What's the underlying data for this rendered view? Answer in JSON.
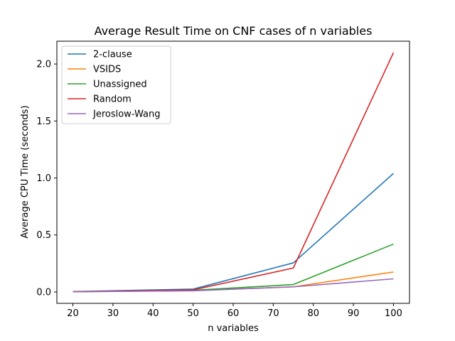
{
  "chart_data": {
    "type": "line",
    "title": "Average Result Time on CNF cases of n variables",
    "xlabel": "n variables",
    "ylabel": "Average CPU Time (seconds)",
    "x": [
      20,
      50,
      75,
      100
    ],
    "xlim": [
      16,
      104
    ],
    "ylim": [
      -0.1,
      2.2
    ],
    "xticks": [
      20,
      30,
      40,
      50,
      60,
      70,
      80,
      90,
      100
    ],
    "yticks": [
      0.0,
      0.5,
      1.0,
      1.5,
      2.0
    ],
    "xtick_labels": [
      "20",
      "30",
      "40",
      "50",
      "60",
      "70",
      "80",
      "90",
      "100"
    ],
    "ytick_labels": [
      "0.0",
      "0.5",
      "1.0",
      "1.5",
      "2.0"
    ],
    "grid": false,
    "legend_position": "top-left",
    "series": [
      {
        "name": "2-clause",
        "color": "#1f77b4",
        "values": [
          0.003,
          0.025,
          0.255,
          1.04
        ]
      },
      {
        "name": "VSIDS",
        "color": "#ff7f0e",
        "values": [
          0.002,
          0.012,
          0.045,
          0.175
        ]
      },
      {
        "name": "Unassigned",
        "color": "#2ca02c",
        "values": [
          0.003,
          0.015,
          0.065,
          0.42
        ]
      },
      {
        "name": "Random",
        "color": "#d62728",
        "values": [
          0.003,
          0.018,
          0.21,
          2.1
        ]
      },
      {
        "name": "Jeroslow-Wang",
        "color": "#9467bd",
        "values": [
          0.002,
          0.01,
          0.045,
          0.115
        ]
      }
    ]
  }
}
